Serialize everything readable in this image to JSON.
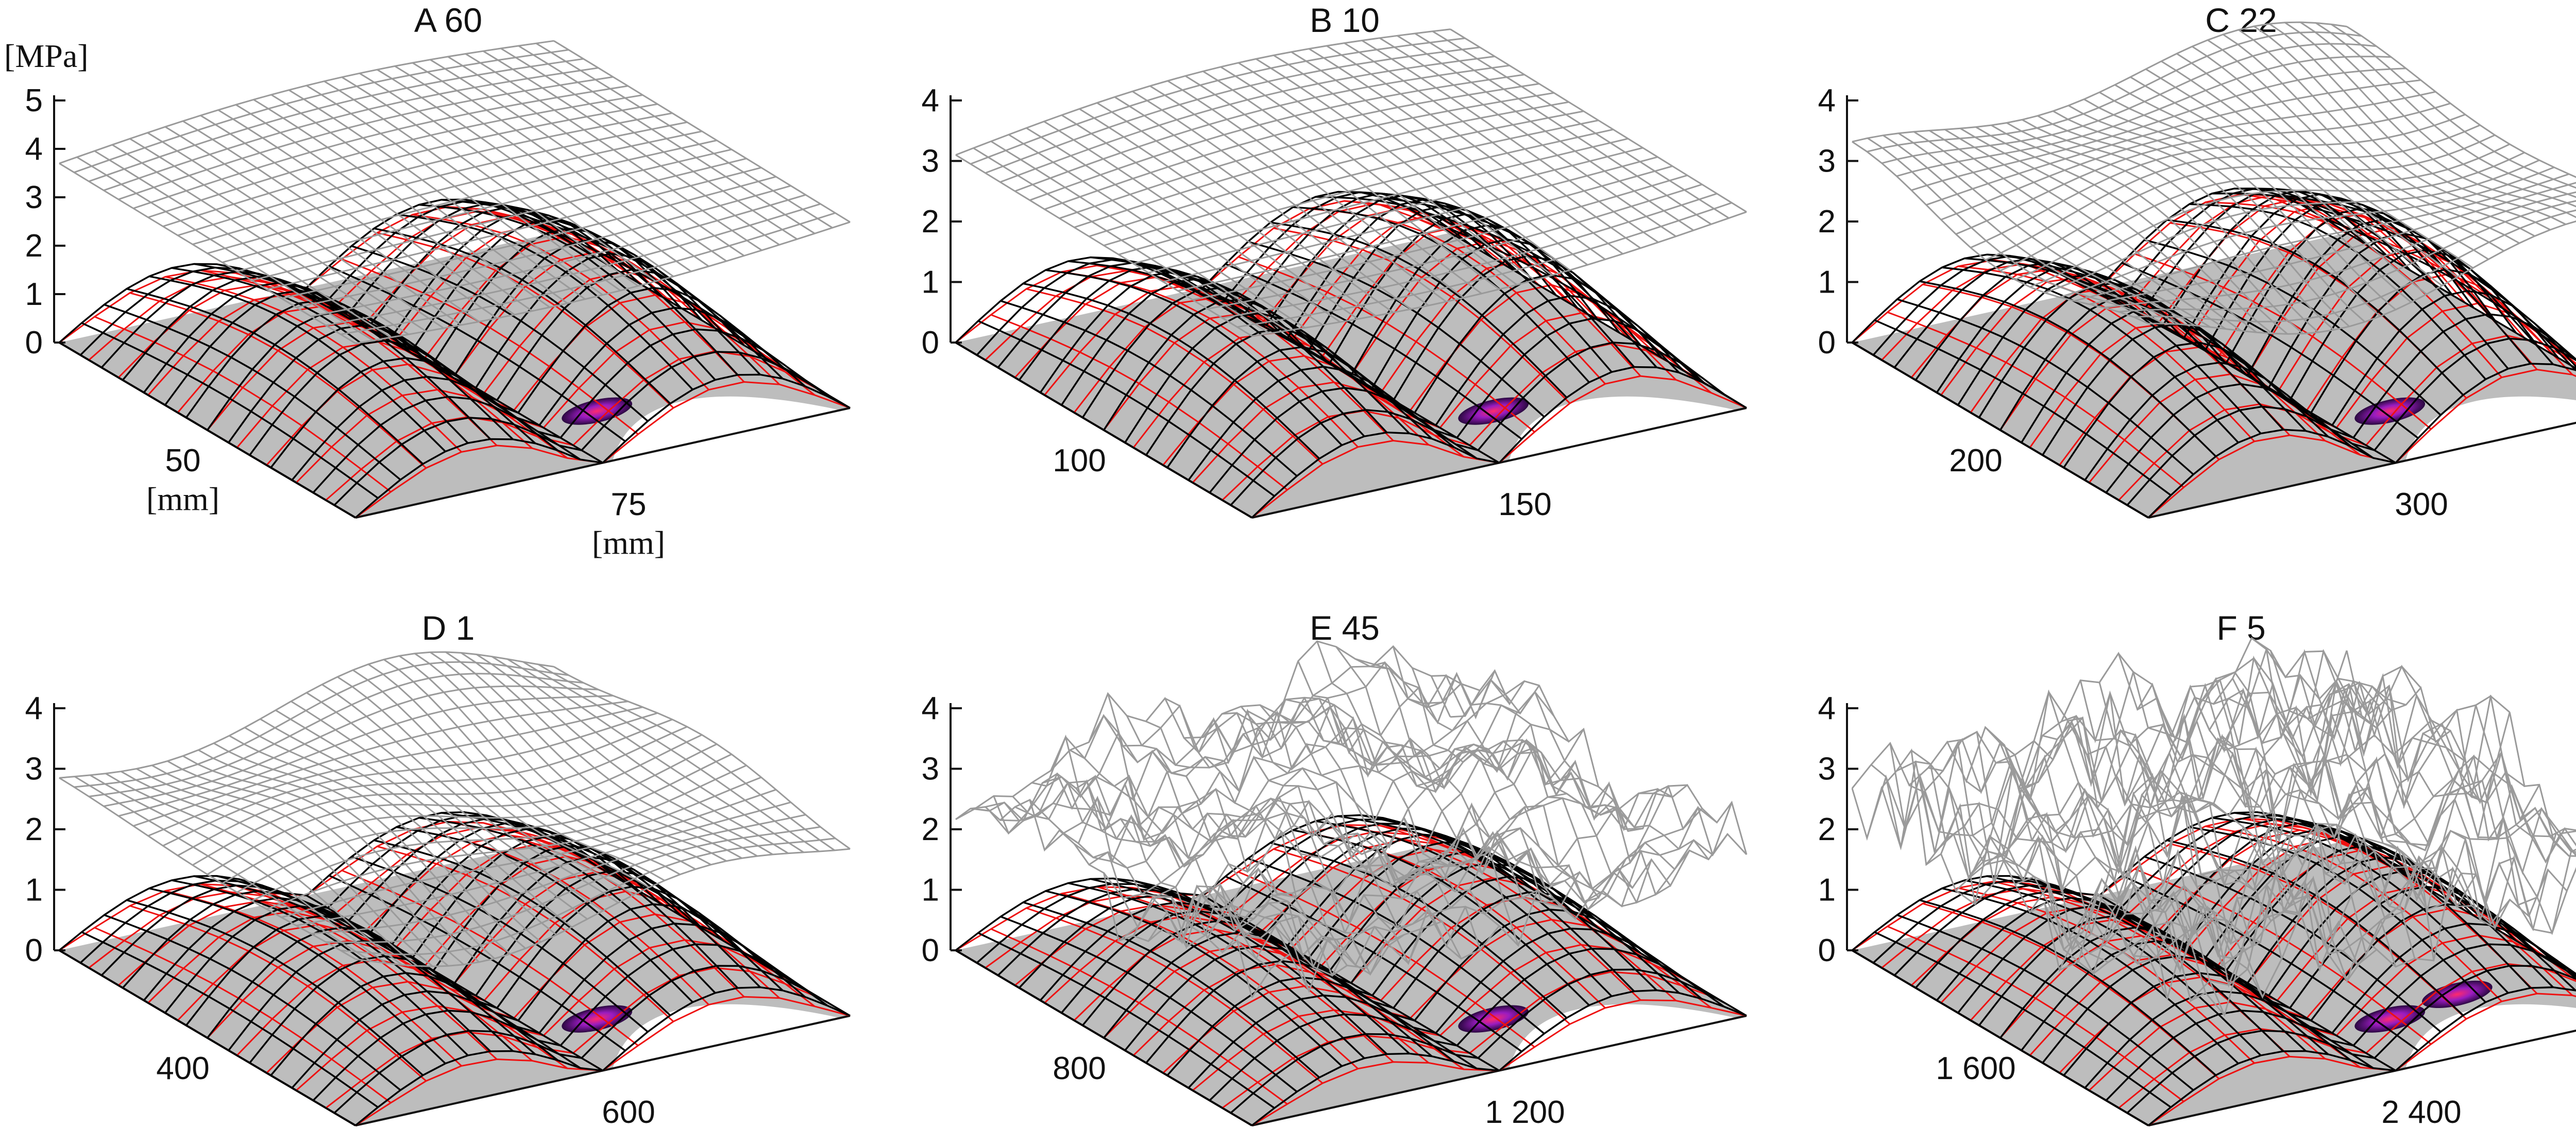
{
  "figure": {
    "zlabel": "[MPa]",
    "colors": {
      "upper_surface": "#9a9a9a",
      "lower_surface": "#000000",
      "contact_mesh": "#ee1111",
      "floor": "#bdbdbd",
      "hotspot_dark": "#3a0a5a",
      "hotspot_mid": "#8a1aa8",
      "hotspot_hot": "#ee1166"
    }
  },
  "chart_data": [
    {
      "type": "surface",
      "title": "A 60",
      "zlabel": "[MPa]",
      "zlim": [
        0,
        5
      ],
      "z_ticks": [
        "0",
        "1",
        "2",
        "3",
        "4",
        "5"
      ],
      "x_ticks": [
        "50",
        "[mm]"
      ],
      "y_ticks": [
        "75",
        "[mm]"
      ],
      "series": [
        {
          "name": "upper grey surface",
          "approx_level": 3.7,
          "roughness": "smooth"
        },
        {
          "name": "lower black surface",
          "peak": 2.2
        },
        {
          "name": "red contact mesh",
          "peak": 2.0
        }
      ]
    },
    {
      "type": "surface",
      "title": "B 10",
      "zlim": [
        0,
        4
      ],
      "z_ticks": [
        "0",
        "1",
        "2",
        "3",
        "4"
      ],
      "x_ticks": [
        "100"
      ],
      "y_ticks": [
        "150"
      ],
      "series": [
        {
          "name": "upper grey surface",
          "approx_level": 3.1,
          "roughness": "smooth"
        },
        {
          "name": "lower black surface",
          "peak": 2.0
        },
        {
          "name": "red contact mesh",
          "peak": 1.8
        }
      ]
    },
    {
      "type": "surface",
      "title": "C 22",
      "zlim": [
        0,
        4
      ],
      "z_ticks": [
        "0",
        "1",
        "2",
        "3",
        "4"
      ],
      "x_ticks": [
        "200"
      ],
      "y_ticks": [
        "300"
      ],
      "series": [
        {
          "name": "upper grey surface",
          "approx_level": 3.0,
          "roughness": "wavy"
        },
        {
          "name": "lower black surface",
          "peak": 2.1
        },
        {
          "name": "red contact mesh",
          "peak": 2.0
        }
      ]
    },
    {
      "type": "surface",
      "title": "D 1",
      "zlim": [
        0,
        4
      ],
      "z_ticks": [
        "0",
        "1",
        "2",
        "3",
        "4"
      ],
      "x_ticks": [
        "400"
      ],
      "y_ticks": [
        "600"
      ],
      "series": [
        {
          "name": "upper grey surface",
          "approx_level": 2.8,
          "roughness": "wavy"
        },
        {
          "name": "lower black surface",
          "peak": 1.6
        },
        {
          "name": "red contact mesh",
          "peak": 1.4
        }
      ]
    },
    {
      "type": "surface",
      "title": "E 45",
      "zlim": [
        0,
        4
      ],
      "z_ticks": [
        "0",
        "1",
        "2",
        "3",
        "4"
      ],
      "x_ticks": [
        "800"
      ],
      "y_ticks": [
        "1 200"
      ],
      "series": [
        {
          "name": "upper grey surface",
          "approx_level": 2.6,
          "roughness": "rough"
        },
        {
          "name": "lower black surface",
          "peak": 1.5
        },
        {
          "name": "red contact mesh",
          "peak": 1.3
        }
      ]
    },
    {
      "type": "surface",
      "title": "F 5",
      "zlim": [
        0,
        4
      ],
      "z_ticks": [
        "0",
        "1",
        "2",
        "3",
        "4"
      ],
      "x_ticks": [
        "1 600"
      ],
      "y_ticks": [
        "2 400"
      ],
      "series": [
        {
          "name": "upper grey surface",
          "approx_level": 2.6,
          "roughness": "very rough"
        },
        {
          "name": "lower black surface",
          "peak": 1.6
        },
        {
          "name": "red contact mesh",
          "peak": 1.5
        }
      ]
    }
  ]
}
